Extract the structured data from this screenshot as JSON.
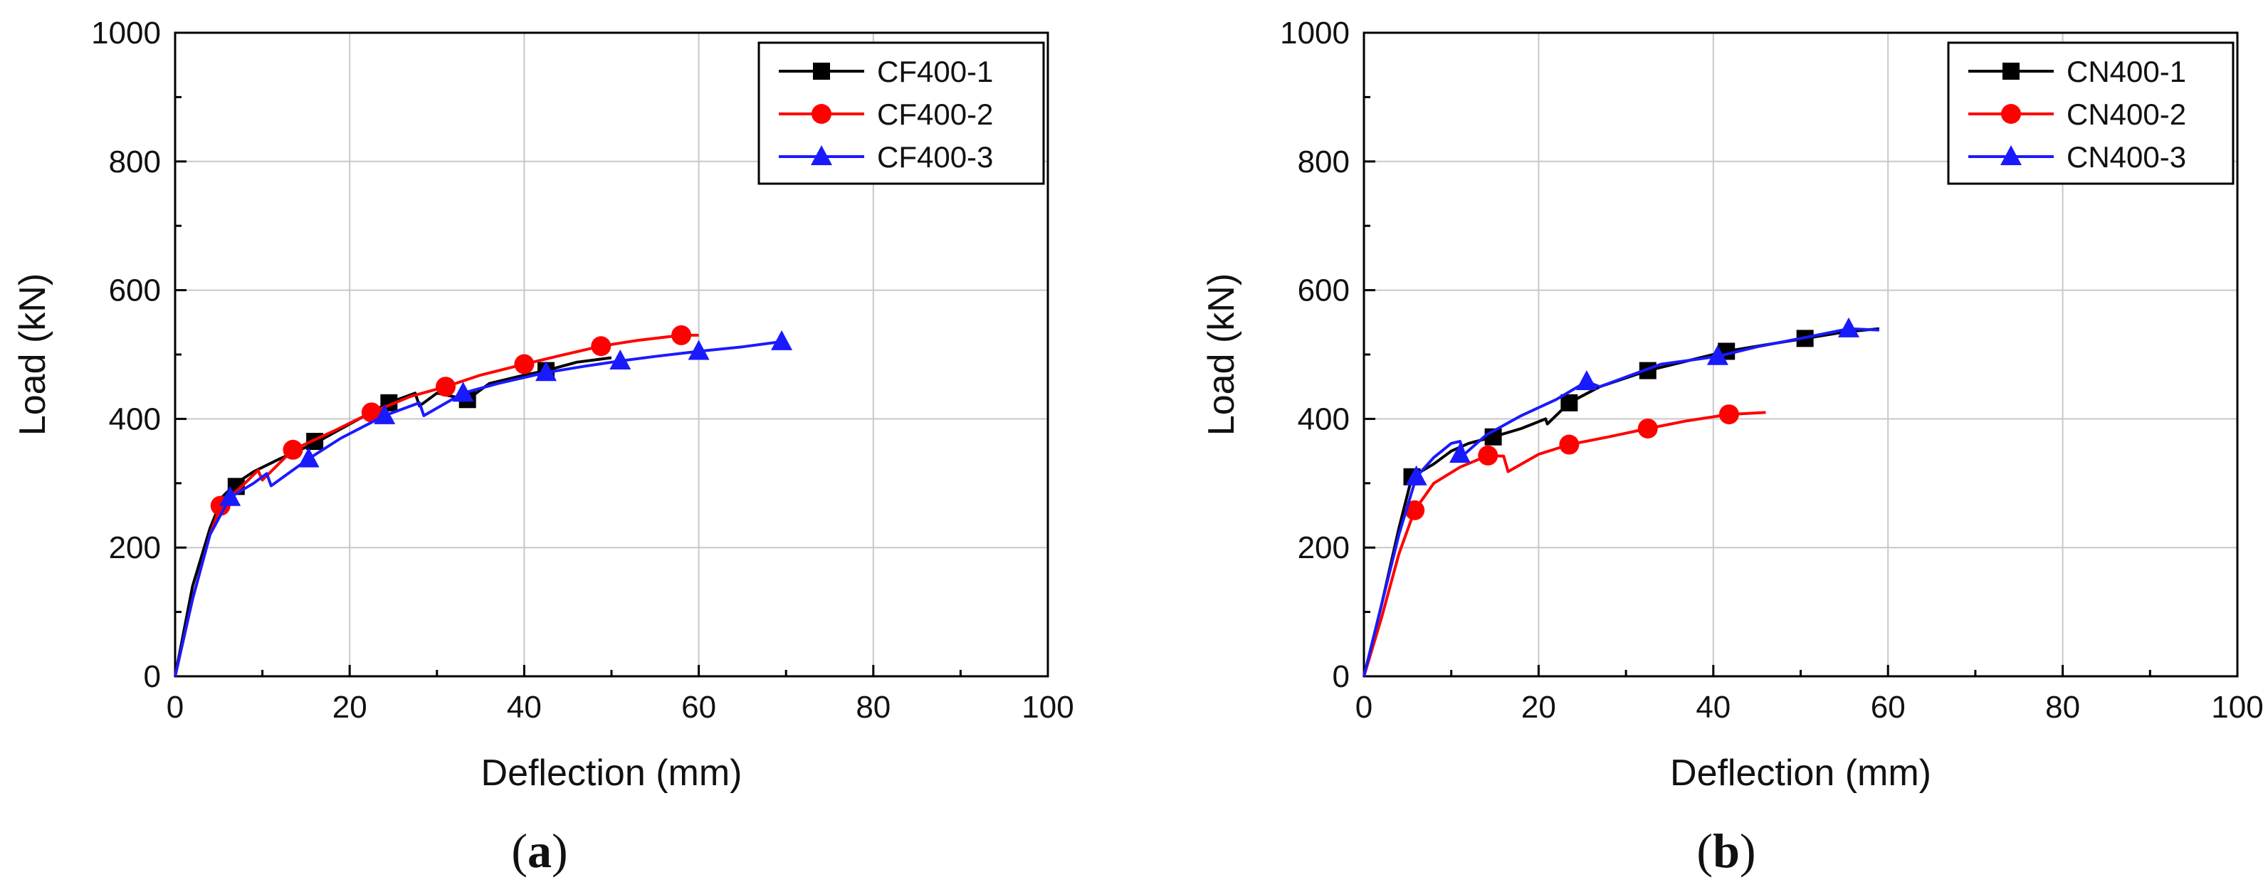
{
  "figure": {
    "panels": [
      {
        "label_open": "(",
        "label_letter": "a",
        "label_close": ")"
      },
      {
        "label_open": "(",
        "label_letter": "b",
        "label_close": ")"
      }
    ]
  },
  "colors": {
    "black": "#000000",
    "red": "#ff0000",
    "blue": "#1a1aff",
    "grid": "#c8c8c8"
  },
  "chart_data": [
    {
      "type": "line",
      "title": "",
      "xlabel": "Deflection (mm)",
      "ylabel": "Load (kN)",
      "xlim": [
        0,
        100
      ],
      "ylim": [
        0,
        1000
      ],
      "xticks": [
        0,
        20,
        40,
        60,
        80,
        100
      ],
      "yticks": [
        0,
        200,
        400,
        600,
        800,
        1000
      ],
      "grid": true,
      "legend_position": "top-right",
      "series": [
        {
          "name": "CF400-1",
          "color": "#000000",
          "marker": "square",
          "x": [
            0,
            2,
            4,
            5.5,
            7,
            9,
            12,
            16,
            20,
            24.5,
            27.5,
            28,
            30,
            33.5,
            36,
            40,
            42.5,
            46,
            50
          ],
          "y": [
            0,
            140,
            230,
            280,
            300,
            318,
            338,
            362,
            392,
            425,
            440,
            420,
            440,
            430,
            455,
            468,
            475,
            488,
            495
          ],
          "marker_x": [
            7,
            16,
            24.5,
            33.5,
            42.5
          ],
          "marker_y": [
            295,
            365,
            425,
            430,
            475
          ]
        },
        {
          "name": "CF400-2",
          "color": "#ff0000",
          "marker": "circle",
          "x": [
            0,
            2,
            4,
            5.2,
            8,
            9.5,
            10,
            13.5,
            18,
            22.5,
            27,
            31,
            35,
            40,
            44,
            48.8,
            53,
            58,
            60
          ],
          "y": [
            0,
            120,
            220,
            265,
            300,
            320,
            305,
            352,
            380,
            410,
            435,
            450,
            468,
            485,
            498,
            513,
            522,
            530,
            530
          ],
          "marker_x": [
            5.2,
            13.5,
            22.5,
            31,
            40,
            48.8,
            58
          ],
          "marker_y": [
            265,
            352,
            410,
            450,
            485,
            513,
            530
          ]
        },
        {
          "name": "CF400-3",
          "color": "#1a1aff",
          "marker": "triangle",
          "x": [
            0,
            2,
            4,
            6.3,
            9,
            10.5,
            11,
            15.3,
            19,
            24,
            28,
            28.5,
            33,
            37,
            42.5,
            47,
            51,
            55,
            60,
            65,
            69.5
          ],
          "y": [
            0,
            120,
            220,
            278,
            300,
            315,
            296,
            338,
            370,
            405,
            425,
            405,
            440,
            455,
            472,
            482,
            490,
            497,
            505,
            512,
            520
          ],
          "marker_x": [
            6.3,
            15.3,
            24,
            33,
            42.5,
            51,
            60,
            69.5
          ],
          "marker_y": [
            278,
            338,
            405,
            440,
            472,
            490,
            505,
            520
          ]
        }
      ]
    },
    {
      "type": "line",
      "title": "",
      "xlabel": "Deflection (mm)",
      "ylabel": "Load (kN)",
      "xlim": [
        0,
        100
      ],
      "ylim": [
        0,
        1000
      ],
      "xticks": [
        0,
        20,
        40,
        60,
        80,
        100
      ],
      "yticks": [
        0,
        200,
        400,
        600,
        800,
        1000
      ],
      "grid": true,
      "legend_position": "top-right",
      "series": [
        {
          "name": "CN400-1",
          "color": "#000000",
          "marker": "square",
          "x": [
            0,
            2,
            4,
            5.5,
            8,
            10,
            12,
            14.8,
            18,
            20.8,
            21,
            23.5,
            27,
            32.5,
            37,
            41.5,
            46,
            50.5,
            55,
            59
          ],
          "y": [
            0,
            110,
            230,
            310,
            330,
            350,
            362,
            372,
            385,
            400,
            392,
            425,
            450,
            475,
            490,
            505,
            515,
            525,
            535,
            540
          ],
          "marker_x": [
            5.5,
            14.8,
            23.5,
            32.5,
            41.5,
            50.5
          ],
          "marker_y": [
            310,
            372,
            425,
            475,
            505,
            525
          ]
        },
        {
          "name": "CN400-2",
          "color": "#ff0000",
          "marker": "circle",
          "x": [
            0,
            2,
            4,
            5.8,
            8,
            11,
            14.2,
            16,
            16.5,
            20,
            23.5,
            28,
            32.5,
            37,
            41.8,
            46
          ],
          "y": [
            0,
            90,
            190,
            258,
            300,
            325,
            343,
            342,
            318,
            345,
            360,
            372,
            385,
            397,
            407,
            410
          ],
          "marker_x": [
            5.8,
            14.2,
            23.5,
            32.5,
            41.8
          ],
          "marker_y": [
            258,
            343,
            360,
            385,
            407
          ]
        },
        {
          "name": "CN400-3",
          "color": "#1a1aff",
          "marker": "triangle",
          "x": [
            0,
            2,
            4,
            6,
            8,
            10,
            11,
            11.5,
            14,
            18,
            22,
            25.5,
            27,
            30,
            34,
            40.5,
            45,
            50,
            55.5,
            59
          ],
          "y": [
            0,
            110,
            220,
            310,
            340,
            362,
            365,
            345,
            375,
            405,
            430,
            458,
            450,
            465,
            485,
            497,
            512,
            525,
            540,
            538
          ],
          "marker_x": [
            6,
            11,
            25.5,
            40.5,
            55.5
          ],
          "marker_y": [
            310,
            345,
            458,
            497,
            540
          ]
        }
      ]
    }
  ]
}
